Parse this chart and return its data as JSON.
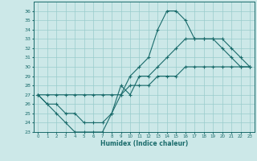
{
  "xlabel": "Humidex (Indice chaleur)",
  "bg_color": "#cce8e8",
  "grid_color": "#99cccc",
  "line_color": "#1a6b6b",
  "hours": [
    0,
    1,
    2,
    3,
    4,
    5,
    6,
    7,
    8,
    9,
    10,
    11,
    12,
    13,
    14,
    15,
    16,
    17,
    18,
    19,
    20,
    21,
    22,
    23
  ],
  "line_top": [
    27,
    26,
    25,
    24,
    23,
    23,
    23,
    23,
    25,
    27,
    29,
    30,
    31,
    34,
    36,
    36,
    35,
    33,
    33,
    33,
    32,
    31,
    30,
    30
  ],
  "line_mid": [
    27,
    27,
    27,
    27,
    27,
    27,
    27,
    27,
    27,
    27,
    28,
    28,
    28,
    29,
    29,
    29,
    30,
    30,
    30,
    30,
    30,
    30,
    30,
    30
  ],
  "line_bot": [
    27,
    26,
    26,
    25,
    25,
    24,
    24,
    24,
    25,
    28,
    27,
    29,
    29,
    30,
    31,
    32,
    33,
    33,
    33,
    33,
    33,
    32,
    31,
    30
  ],
  "ylim": [
    23,
    37
  ],
  "yticks": [
    23,
    24,
    25,
    26,
    27,
    28,
    29,
    30,
    31,
    32,
    33,
    34,
    35,
    36
  ],
  "xlim": [
    -0.5,
    23.5
  ]
}
